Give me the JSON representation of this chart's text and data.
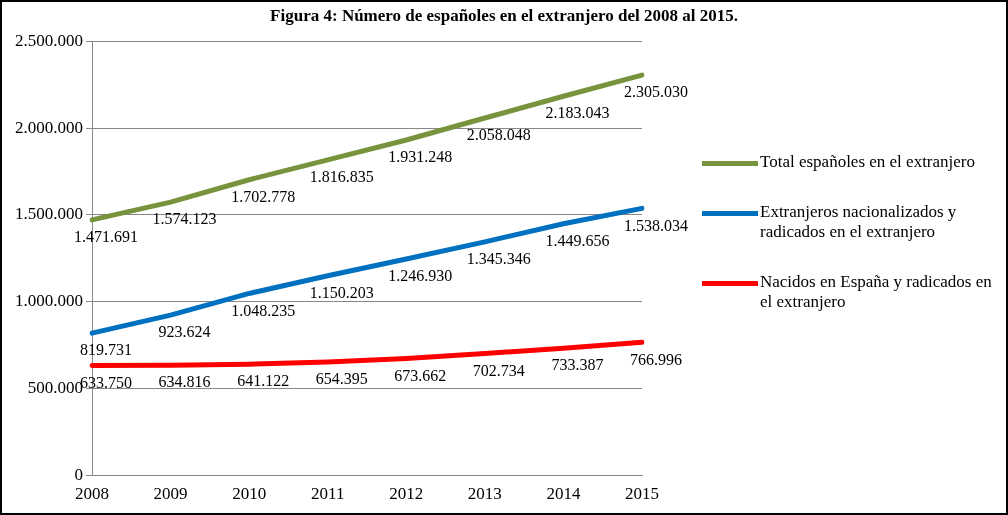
{
  "chart_data": {
    "type": "line",
    "title": "Figura 4: Número de españoles en el extranjero del 2008 al 2015.",
    "categories": [
      "2008",
      "2009",
      "2010",
      "2011",
      "2012",
      "2013",
      "2014",
      "2015"
    ],
    "series": [
      {
        "name": "Total españoles en el extranjero",
        "color": "#77933c",
        "values": [
          1471691,
          1574123,
          1702778,
          1816835,
          1931248,
          2058048,
          2183043,
          2305030
        ],
        "value_labels": [
          "1.471.691",
          "1.574.123",
          "1.702.778",
          "1.816.835",
          "1.931.248",
          "2.058.048",
          "2.183.043",
          "2.305.030"
        ]
      },
      {
        "name": "Extranjeros nacionalizados y radicados en el extranjero",
        "color": "#0070c0",
        "values": [
          819731,
          923624,
          1048235,
          1150203,
          1246930,
          1345346,
          1449656,
          1538034
        ],
        "value_labels": [
          "819.731",
          "923.624",
          "1.048.235",
          "1.150.203",
          "1.246.930",
          "1.345.346",
          "1.449.656",
          "1.538.034"
        ]
      },
      {
        "name": "Nacidos en España y radicados en el extranjero",
        "color": "#ff0000",
        "values": [
          633750,
          634816,
          641122,
          654395,
          673662,
          702734,
          733387,
          766996
        ],
        "value_labels": [
          "633.750",
          "634.816",
          "641.122",
          "654.395",
          "673.662",
          "702.734",
          "733.387",
          "766.996"
        ]
      }
    ],
    "ylim": [
      0,
      2500000
    ],
    "yticks": [
      {
        "value": 0,
        "label": "0"
      },
      {
        "value": 500000,
        "label": "500.000"
      },
      {
        "value": 1000000,
        "label": "1.000.000"
      },
      {
        "value": 1500000,
        "label": "1.500.000"
      },
      {
        "value": 2000000,
        "label": "2.000.000"
      },
      {
        "value": 2500000,
        "label": "2.500.000"
      }
    ],
    "grid": "y",
    "legend": "right",
    "marker": "none"
  }
}
